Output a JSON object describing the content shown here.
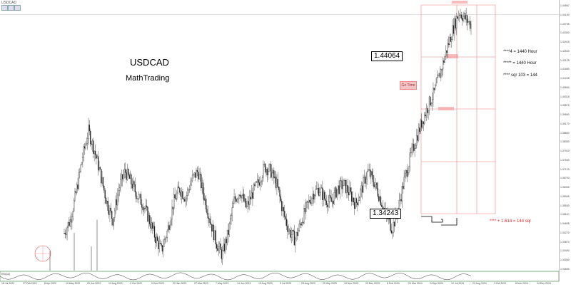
{
  "window": {
    "symbol": "USDCAD"
  },
  "annotations": {
    "title": "USDCAD",
    "subtitle": "MathTrading",
    "price_top": "1.44064",
    "price_low": "1.34243",
    "go_time": "Go Time",
    "note1": "****4 = 1440 Hour",
    "note2": "***** = 1440 Hour",
    "note3": "**** sqr 103 = 144",
    "note4": "**** + 1.614 = 144 sqr"
  },
  "colors": {
    "grid": "#f08080",
    "candle": "#222222",
    "accent": "#e22222",
    "osc": "#333333",
    "osc_bg": "#2e7d32"
  },
  "chart_data": {
    "type": "candlestick",
    "symbol": "USDCAD",
    "price_range": [
      1.325,
      1.446
    ],
    "y_ticks": [
      "1.44567",
      "1.44150",
      "1.43795",
      "1.43300",
      "1.42915",
      "1.42530",
      "1.42125",
      "1.41680",
      "1.41245",
      "1.40840",
      "1.40315",
      "1.39875",
      "1.39560",
      "1.39170",
      "1.38850",
      "1.38350",
      "1.37920",
      "1.37530",
      "1.37120",
      "1.36700",
      "1.36330",
      "1.35945",
      "1.35530",
      "1.35110",
      "1.34695",
      "1.34270",
      "1.33870",
      "1.33490",
      "1.33060",
      "1.32650"
    ],
    "x_ticks": [
      "18 Jul 2022",
      "27 Feb 2022",
      "8 Apr 2022",
      "19 May 2022",
      "29 Jun 2022",
      "12 Aug 2022",
      "2 Oct 2022",
      "9 Dec 2022",
      "20 Jan 2023",
      "27 Mar 2023",
      "7 May 2023",
      "14 Jun 2023",
      "19 Aug 2023",
      "3 Jul 2023",
      "25 Aug 2023",
      "25 Sep 2023",
      "19 Nov 2023",
      "29 Dec 2023",
      "8 Feb 2024",
      "20 Mar 2024",
      "24 Apr 2024",
      "10 Jul 2024",
      "22 Aug 2024",
      "3 Oct 2024",
      "8 Nov 2024",
      "24 Dec 2024"
    ],
    "closes": [
      1.342,
      1.348,
      1.361,
      1.376,
      1.388,
      1.379,
      1.368,
      1.356,
      1.348,
      1.362,
      1.37,
      1.365,
      1.359,
      1.355,
      1.348,
      1.34,
      1.334,
      1.343,
      1.356,
      1.362,
      1.358,
      1.366,
      1.37,
      1.359,
      1.348,
      1.338,
      1.332,
      1.342,
      1.357,
      1.361,
      1.353,
      1.36,
      1.365,
      1.372,
      1.37,
      1.364,
      1.352,
      1.343,
      1.339,
      1.347,
      1.354,
      1.36,
      1.362,
      1.357,
      1.356,
      1.362,
      1.364,
      1.36,
      1.355,
      1.362,
      1.37,
      1.365,
      1.358,
      1.35,
      1.344,
      1.353,
      1.366,
      1.376,
      1.385,
      1.393,
      1.4,
      1.406,
      1.415,
      1.425,
      1.434,
      1.442,
      1.439,
      1.436
    ],
    "oscillator": {
      "label": "RSI(14)",
      "range": [
        0,
        100
      ]
    },
    "grid": {
      "horizontal_levels": [
        1.4455,
        1.436,
        1.407,
        1.3755,
        1.3445
      ],
      "vertical_dates": [
        "22 Aug 2024",
        "8 Nov 2024",
        "24 Dec 2024"
      ]
    }
  }
}
